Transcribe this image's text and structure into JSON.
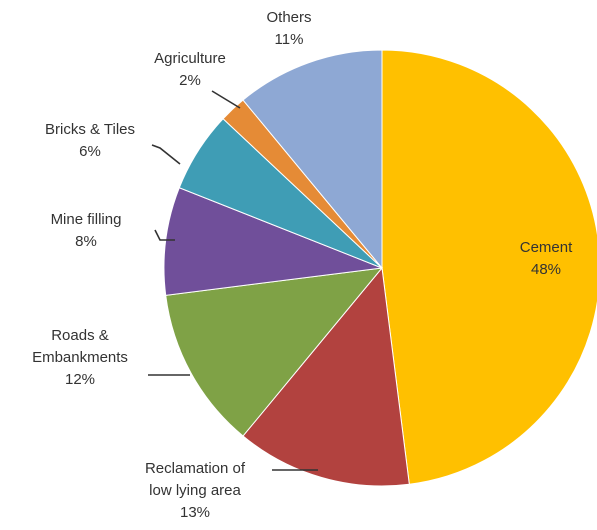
{
  "chart_data": {
    "type": "pie",
    "title": "",
    "legend": "none",
    "colors": [
      "#FFC000",
      "#B2423F",
      "#7FA246",
      "#704F9A",
      "#3F9DB5",
      "#E58B36",
      "#8EA8D4"
    ],
    "slices": [
      {
        "label_lines": [
          "Cement"
        ],
        "percent_text": "48%",
        "value": 48
      },
      {
        "label_lines": [
          "Reclamation of",
          "low lying area"
        ],
        "percent_text": "13%",
        "value": 13
      },
      {
        "label_lines": [
          "Roads &",
          "Embankments"
        ],
        "percent_text": "12%",
        "value": 12
      },
      {
        "label_lines": [
          "Mine filling"
        ],
        "percent_text": "8%",
        "value": 8
      },
      {
        "label_lines": [
          "Bricks & Tiles"
        ],
        "percent_text": "6%",
        "value": 6
      },
      {
        "label_lines": [
          "Agriculture"
        ],
        "percent_text": "2%",
        "value": 2
      },
      {
        "label_lines": [
          "Others"
        ],
        "percent_text": "11%",
        "value": 11
      }
    ]
  }
}
